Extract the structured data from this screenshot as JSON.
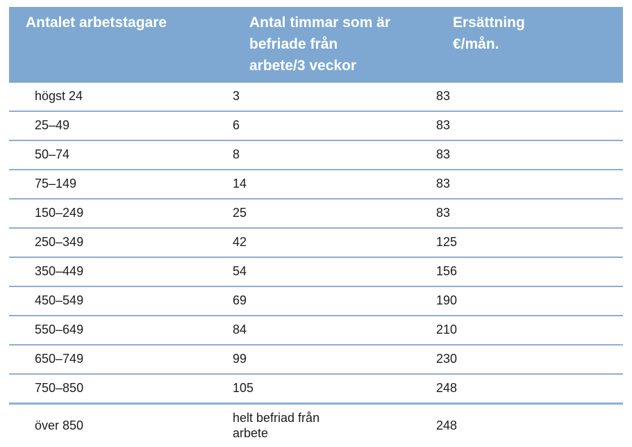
{
  "page": {
    "background": "#ffffff"
  },
  "table": {
    "columns": [
      {
        "label": "Antalet arbetstagare"
      },
      {
        "label": "Antal timmar som är\nbefriade från\narbete/3 veckor"
      },
      {
        "label": "Ersättning\n€/mån."
      }
    ],
    "rows": [
      [
        "högst 24",
        "3",
        "83"
      ],
      [
        "25–49",
        "6",
        "83"
      ],
      [
        "50–74",
        "8",
        "83"
      ],
      [
        "75–149",
        "14",
        "83"
      ],
      [
        "150–249",
        "25",
        "83"
      ],
      [
        "250–349",
        "42",
        "125"
      ],
      [
        "350–449",
        "54",
        "156"
      ],
      [
        "450–549",
        "69",
        "190"
      ],
      [
        "550–649",
        "84",
        "210"
      ],
      [
        "650–749",
        "99",
        "230"
      ],
      [
        "750–850",
        "105",
        "248"
      ],
      [
        "över 850",
        "helt befriad från\narbete",
        "248"
      ]
    ],
    "colors": {
      "header_bg": "#7ea8d1",
      "header_text": "#ffffff",
      "row_separator": "#8fadd4",
      "bottom_bar": "#7ea8d1",
      "body_text": "#1c1c1c"
    }
  }
}
